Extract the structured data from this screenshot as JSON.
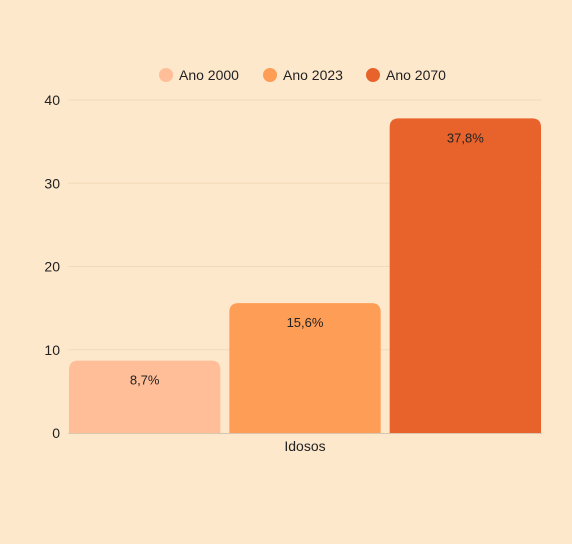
{
  "chart_data": {
    "type": "bar",
    "categories": [
      "Idosos"
    ],
    "series": [
      {
        "name": "Ano 2000",
        "values": [
          8.7
        ],
        "label": "8,7%",
        "color": "#ffbe98"
      },
      {
        "name": "Ano 2023",
        "values": [
          15.6
        ],
        "label": "15,6%",
        "color": "#fe9d56"
      },
      {
        "name": "Ano 2070",
        "values": [
          37.8
        ],
        "label": "37,8%",
        "color": "#e8632c"
      }
    ],
    "yticks": [
      "0",
      "10",
      "20",
      "30",
      "40"
    ],
    "ylim": [
      0,
      40
    ],
    "grid": true,
    "legend": "top-center",
    "gridColor": "#f3d9b7",
    "axisColor": "#d8c6ae"
  }
}
